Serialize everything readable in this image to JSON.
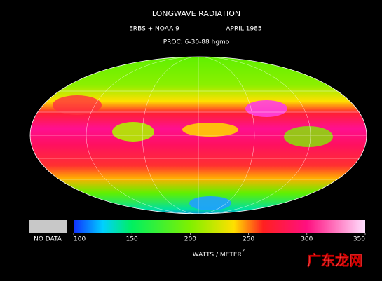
{
  "header": {
    "title": "LONGWAVE RADIATION",
    "source": "ERBS + NOAA 9",
    "date": "APRIL 1985",
    "processed": "PROC: 6-30-88 hgmo"
  },
  "legend": {
    "no_data": "NO DATA",
    "lim": [
      100,
      350
    ],
    "ticks": [
      100,
      150,
      200,
      250,
      300,
      350
    ],
    "unit": "WATTS / METER",
    "unit_exponent": "2"
  },
  "watermark": "广东龙网"
}
